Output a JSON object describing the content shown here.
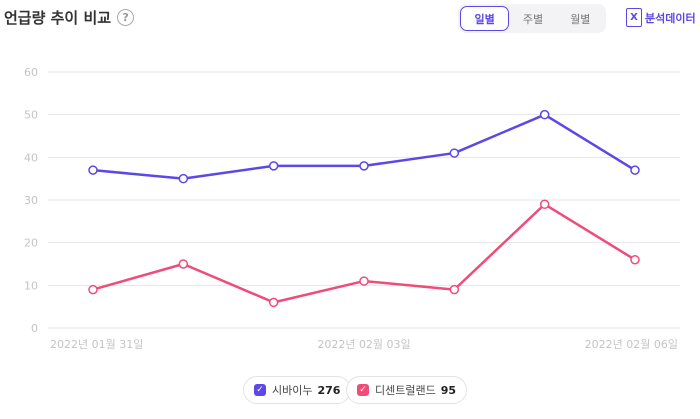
{
  "header": {
    "title": "언급량 추이 비교",
    "help_glyph": "?",
    "tabs": [
      {
        "label": "일별",
        "active": true
      },
      {
        "label": "주별",
        "active": false
      },
      {
        "label": "월별",
        "active": false
      }
    ],
    "data_link_icon_glyph": "X",
    "data_link_label": "분석데이터"
  },
  "colors": {
    "accent": "#5b48e6",
    "series_1": "#5b48e6",
    "series_2": "#f04c7a",
    "grid": "#e6e6e6",
    "axis_text": "#c4c4c4"
  },
  "chart_data": {
    "type": "line",
    "x": [
      "2022년 01월 31일",
      "",
      "",
      "2022년 02월 03일",
      "",
      "",
      "2022년 02월 06일"
    ],
    "x_tick_labels": [
      "2022년 01월 31일",
      "2022년 02월 03일",
      "2022년 02월 06일"
    ],
    "y_ticks": [
      0,
      10,
      20,
      30,
      40,
      50,
      60
    ],
    "ylim": [
      0,
      60
    ],
    "grid": true,
    "legend_position": "bottom",
    "series": [
      {
        "name": "시바이누",
        "values": [
          37,
          35,
          38,
          38,
          41,
          50,
          37
        ],
        "total": "276",
        "check": "✓"
      },
      {
        "name": "디센트럴랜드",
        "values": [
          9,
          15,
          6,
          11,
          9,
          29,
          16
        ],
        "total": "95",
        "check": "✓"
      }
    ]
  }
}
